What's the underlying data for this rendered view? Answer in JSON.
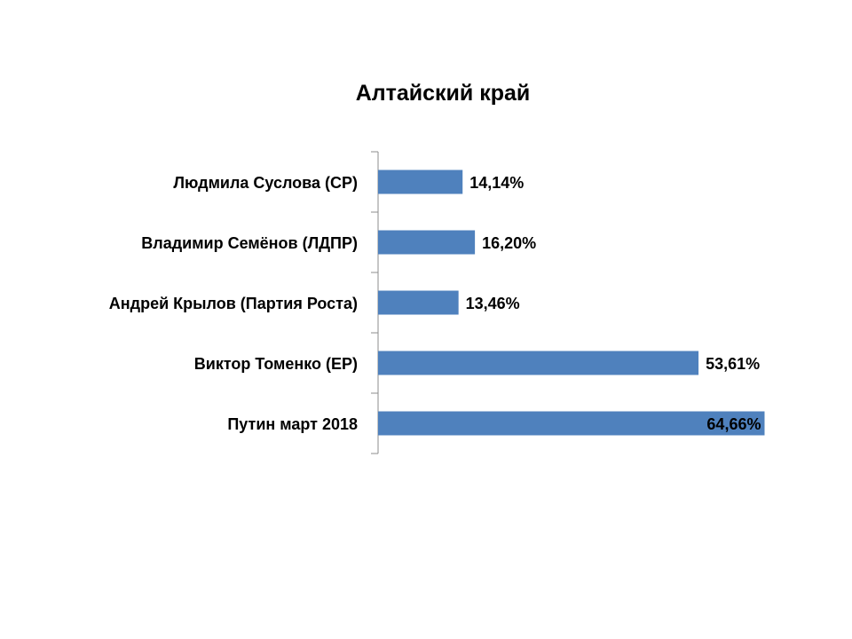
{
  "chart_data": {
    "type": "bar",
    "orientation": "horizontal",
    "title": "Алтайский край",
    "xlabel": "",
    "ylabel": "",
    "xlim": [
      0,
      70
    ],
    "grid": false,
    "legend": "none",
    "bar_color": "#4f81bd",
    "categories": [
      "Людмила Суслова (СР)",
      "Владимир Семёнов (ЛДПР)",
      "Андрей Крылов (Партия Роста)",
      "Виктор Томенко (ЕР)",
      "Путин март 2018"
    ],
    "values": [
      14.14,
      16.2,
      13.46,
      53.61,
      64.66
    ],
    "data_labels": [
      "14,14%",
      "16,20%",
      "13,46%",
      "53,61%",
      "64,66%"
    ]
  }
}
